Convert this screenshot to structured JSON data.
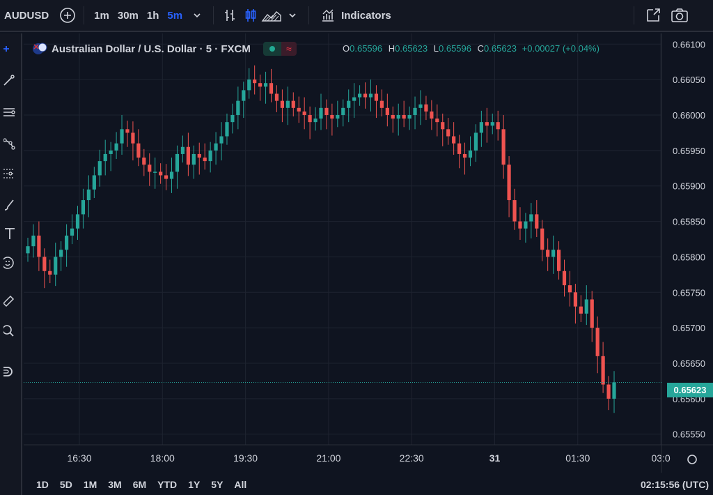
{
  "topbar": {
    "symbol": "AUDUSD",
    "intervals": [
      "1m",
      "30m",
      "1h",
      "5m"
    ],
    "active_interval": "5m",
    "indicators_label": "Indicators",
    "icons": [
      "add-symbol-icon",
      "chevron-down-icon",
      "bar-chart-icon",
      "candle-chart-icon",
      "area-chart-icon",
      "chevron-down-icon",
      "indicators-icon",
      "fullscreen-icon",
      "camera-icon"
    ]
  },
  "legend": {
    "title": "Australian Dollar / U.S. Dollar · 5 · FXCM",
    "ohlc": {
      "o_label": "O",
      "o": "0.65596",
      "h_label": "H",
      "h": "0.65623",
      "l_label": "L",
      "l": "0.65596",
      "c_label": "C",
      "c": "0.65623",
      "change": "+0.00027 (+0.04%)"
    }
  },
  "last_price": "0.65623",
  "bottombar": {
    "ranges": [
      "1D",
      "5D",
      "1M",
      "3M",
      "6M",
      "YTD",
      "1Y",
      "5Y",
      "All"
    ],
    "clock": "02:15:56 (UTC)"
  },
  "colors": {
    "up": "#26a69a",
    "down": "#ef5350",
    "bg": "#0f1420",
    "grid": "#1e2330"
  },
  "chart_data": {
    "type": "candlestick",
    "title": "Australian Dollar / U.S. Dollar · 5 · FXCM",
    "y_ticks": [
      "0.66100",
      "0.66050",
      "0.66000",
      "0.65950",
      "0.65900",
      "0.65850",
      "0.65800",
      "0.65750",
      "0.65700",
      "0.65650",
      "0.65600",
      "0.65550"
    ],
    "x_ticks": [
      "16:30",
      "18:00",
      "19:30",
      "21:00",
      "22:30",
      "31",
      "01:30",
      "03:0"
    ],
    "ylim": [
      0.65535,
      0.66115
    ],
    "grid": true,
    "closes": [
      0.65815,
      0.6583,
      0.658,
      0.6578,
      0.65775,
      0.658,
      0.6581,
      0.6583,
      0.6584,
      0.6586,
      0.6588,
      0.65895,
      0.65915,
      0.65935,
      0.65945,
      0.6595,
      0.6596,
      0.6598,
      0.65975,
      0.6596,
      0.6594,
      0.6593,
      0.6592,
      0.6592,
      0.65915,
      0.6591,
      0.6592,
      0.65945,
      0.65955,
      0.6593,
      0.65945,
      0.6594,
      0.65935,
      0.6595,
      0.6596,
      0.6597,
      0.6599,
      0.66,
      0.6602,
      0.66035,
      0.6605,
      0.66045,
      0.6604,
      0.66045,
      0.6603,
      0.6602,
      0.6601,
      0.6602,
      0.6601,
      0.66005,
      0.66,
      0.6599,
      0.65995,
      0.6601,
      0.66,
      0.65995,
      0.66,
      0.6601,
      0.6602,
      0.66025,
      0.6603,
      0.66025,
      0.6603,
      0.6602,
      0.6601,
      0.66,
      0.65995,
      0.66,
      0.65995,
      0.66,
      0.6601,
      0.66015,
      0.66005,
      0.65995,
      0.6599,
      0.6598,
      0.6597,
      0.6596,
      0.65945,
      0.6594,
      0.6595,
      0.65975,
      0.6599,
      0.65985,
      0.6599,
      0.6598,
      0.6593,
      0.6588,
      0.6585,
      0.6584,
      0.6585,
      0.6586,
      0.6584,
      0.6581,
      0.658,
      0.6581,
      0.6578,
      0.6576,
      0.6575,
      0.6573,
      0.6572,
      0.6574,
      0.657,
      0.6566,
      0.6562,
      0.656,
      0.65623
    ]
  }
}
